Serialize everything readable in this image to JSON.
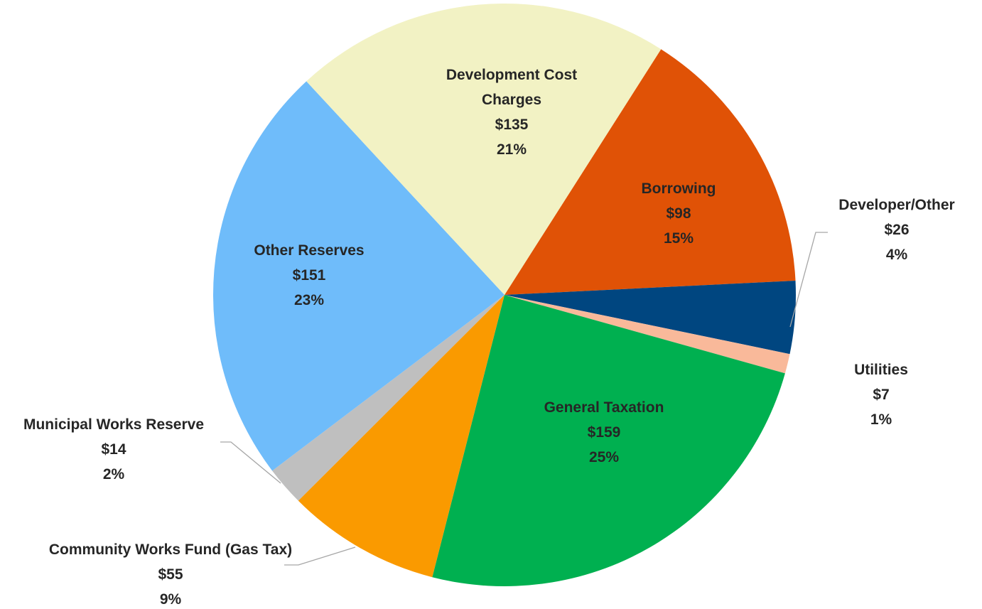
{
  "chart_data": {
    "type": "pie",
    "categories": [
      "Borrowing",
      "Developer/Other",
      "Utilities",
      "General Taxation",
      "Community Works Fund (Gas Tax)",
      "Municipal Works Reserve",
      "Other Reserves",
      "Development Cost Charges"
    ],
    "values": [
      98,
      26,
      7,
      159,
      55,
      14,
      151,
      135
    ],
    "value_labels": [
      "$98",
      "$26",
      "$7",
      "$159",
      "$55",
      "$14",
      "$151",
      "$135"
    ],
    "percentages": [
      15,
      4,
      1,
      25,
      9,
      2,
      23,
      21
    ],
    "percentage_labels": [
      "15%",
      "4%",
      "1%",
      "25%",
      "9%",
      "2%",
      "23%",
      "21%"
    ],
    "colors": [
      "#e05206",
      "#004680",
      "#f9b99a",
      "#00b050",
      "#fa9a00",
      "#bfbfbf",
      "#6fbcfa",
      "#f2f2c4"
    ]
  }
}
